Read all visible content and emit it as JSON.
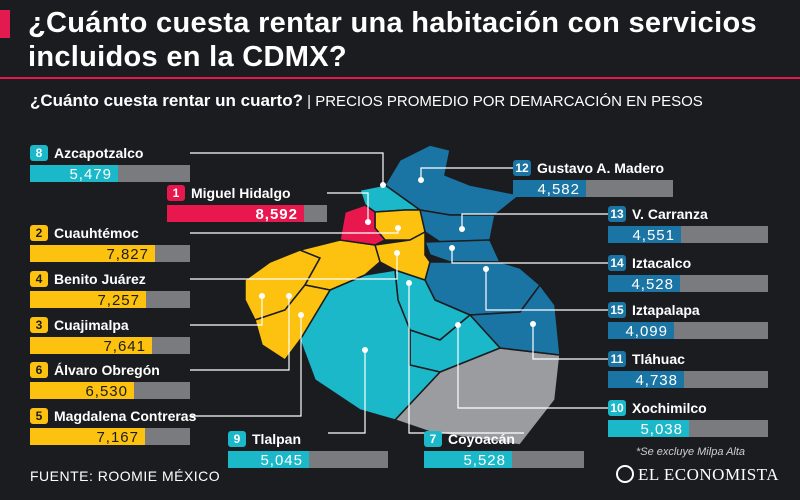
{
  "title": "¿Cuánto cuesta rentar una habitación con servicios incluidos en la CDMX?",
  "subtitle_bold": "¿Cuánto cuesta rentar un cuarto?",
  "subtitle_rest": "| PRECIOS PROMEDIO POR DEMARCACIÓN EN PESOS",
  "note": "*Se excluye Milpa Alta",
  "source": "FUENTE: ROOMIE MÉXICO",
  "brand": "EL ECONOMISTA",
  "colors": {
    "top": "#e8184f",
    "yellow": "#fdc20f",
    "teal": "#1ab8c8",
    "blue": "#1a74a4",
    "gray": "#7a7b7e",
    "grayzone": "#9b9c9f"
  },
  "chart_data": {
    "type": "bar",
    "title": "¿Cuánto cuesta rentar un cuarto?",
    "scale_max": 10000,
    "bars": [
      {
        "rank": "8",
        "name": "Azcapotzalco",
        "value": 5479,
        "display": "5,479",
        "color": "teal",
        "side": "left"
      },
      {
        "rank": "1",
        "name": "Miguel Hidalgo",
        "value": 8592,
        "display": "8,592",
        "color": "top",
        "side": "left"
      },
      {
        "rank": "2",
        "name": "Cuauhtémoc",
        "value": 7827,
        "display": "7,827",
        "color": "yellow",
        "side": "left"
      },
      {
        "rank": "4",
        "name": "Benito Juárez",
        "value": 7257,
        "display": "7,257",
        "color": "yellow",
        "side": "left"
      },
      {
        "rank": "3",
        "name": "Cuajimalpa",
        "value": 7641,
        "display": "7,641",
        "color": "yellow",
        "side": "left"
      },
      {
        "rank": "6",
        "name": "Álvaro Obregón",
        "value": 6530,
        "display": "6,530",
        "color": "yellow",
        "side": "left"
      },
      {
        "rank": "5",
        "name": "Magdalena Contreras",
        "value": 7167,
        "display": "7,167",
        "color": "yellow",
        "side": "left"
      },
      {
        "rank": "9",
        "name": "Tlalpan",
        "value": 5045,
        "display": "5,045",
        "color": "teal",
        "side": "bottom"
      },
      {
        "rank": "7",
        "name": "Coyoacán",
        "value": 5528,
        "display": "5,528",
        "color": "teal",
        "side": "bottom"
      },
      {
        "rank": "12",
        "name": "Gustavo A. Madero",
        "value": 4582,
        "display": "4,582",
        "color": "blue",
        "side": "right"
      },
      {
        "rank": "13",
        "name": "V. Carranza",
        "value": 4551,
        "display": "4,551",
        "color": "blue",
        "side": "right"
      },
      {
        "rank": "14",
        "name": "Iztacalco",
        "value": 4528,
        "display": "4,528",
        "color": "blue",
        "side": "right"
      },
      {
        "rank": "15",
        "name": "Iztapalapa",
        "value": 4099,
        "display": "4,099",
        "color": "blue",
        "side": "right"
      },
      {
        "rank": "11",
        "name": "Tláhuac",
        "value": 4738,
        "display": "4,738",
        "color": "blue",
        "side": "right"
      },
      {
        "rank": "10",
        "name": "Xochimilco",
        "value": 5038,
        "display": "5,038",
        "color": "teal",
        "side": "right"
      }
    ]
  }
}
